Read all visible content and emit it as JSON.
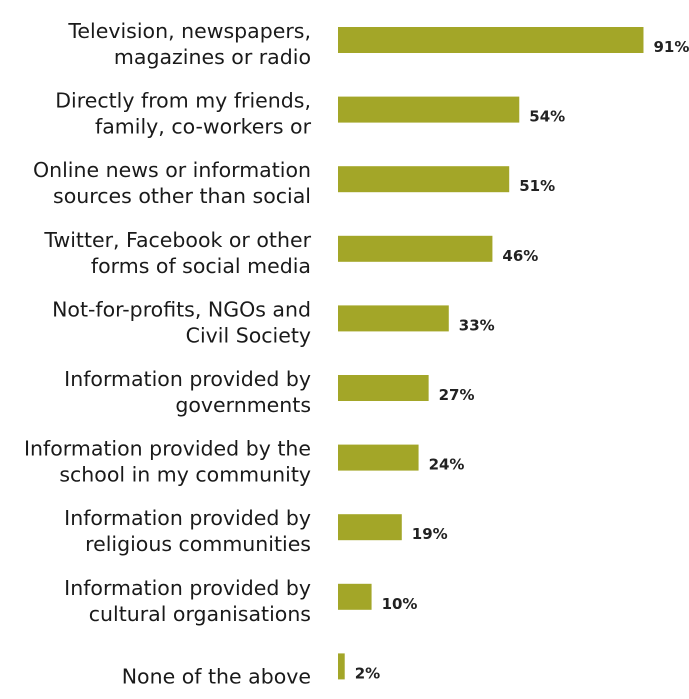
{
  "chart_data": {
    "type": "bar",
    "orientation": "horizontal",
    "title": "",
    "xlabel": "",
    "ylabel": "",
    "xlim": [
      0,
      100
    ],
    "grid": false,
    "bar_color": "#a3a628",
    "value_suffix": "%",
    "categories": [
      [
        "Television, newspapers,",
        "magazines or radio"
      ],
      [
        "Directly from my friends,",
        "family, co-workers or"
      ],
      [
        "Online news or information",
        "sources other than social"
      ],
      [
        "Twitter, Facebook or other",
        "forms of social media"
      ],
      [
        "Not-for-profits, NGOs and",
        "Civil Society"
      ],
      [
        "Information provided by",
        "governments"
      ],
      [
        "Information provided by the",
        "school in my community"
      ],
      [
        "Information provided by",
        "religious communities"
      ],
      [
        "Information provided by",
        "cultural organisations"
      ],
      [
        "None of the above"
      ]
    ],
    "values": [
      91,
      54,
      51,
      46,
      33,
      27,
      24,
      19,
      10,
      2
    ],
    "value_labels": [
      "91%",
      "54%",
      "51%",
      "46%",
      "33%",
      "27%",
      "24%",
      "19%",
      "10%",
      "2%"
    ]
  }
}
